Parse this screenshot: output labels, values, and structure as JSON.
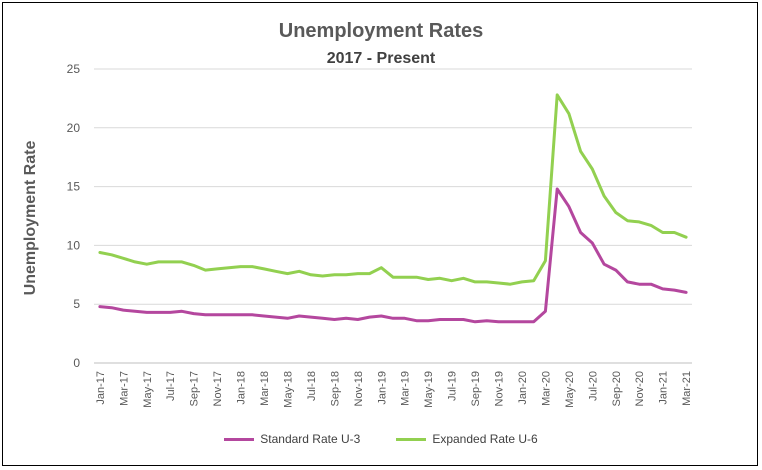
{
  "chart_data": {
    "type": "line",
    "title": "Unemployment Rates",
    "subtitle": "2017 - Present",
    "ylabel": "Unemployment Rate",
    "ylim": [
      0,
      25
    ],
    "yticks": [
      0,
      5,
      10,
      15,
      20,
      25
    ],
    "grid": true,
    "legend_position": "bottom",
    "x": [
      "Jan-17",
      "Feb-17",
      "Mar-17",
      "Apr-17",
      "May-17",
      "Jun-17",
      "Jul-17",
      "Aug-17",
      "Sep-17",
      "Oct-17",
      "Nov-17",
      "Dec-17",
      "Jan-18",
      "Feb-18",
      "Mar-18",
      "Apr-18",
      "May-18",
      "Jun-18",
      "Jul-18",
      "Aug-18",
      "Sep-18",
      "Oct-18",
      "Nov-18",
      "Dec-18",
      "Jan-19",
      "Feb-19",
      "Mar-19",
      "Apr-19",
      "May-19",
      "Jun-19",
      "Jul-19",
      "Aug-19",
      "Sep-19",
      "Oct-19",
      "Nov-19",
      "Dec-19",
      "Jan-20",
      "Feb-20",
      "Mar-20",
      "Apr-20",
      "May-20",
      "Jun-20",
      "Jul-20",
      "Aug-20",
      "Sep-20",
      "Oct-20",
      "Nov-20",
      "Dec-20",
      "Jan-21",
      "Feb-21",
      "Mar-21"
    ],
    "x_tick_labels": [
      "Jan-17",
      "Mar-17",
      "May-17",
      "Jul-17",
      "Sep-17",
      "Nov-17",
      "Jan-18",
      "Mar-18",
      "May-18",
      "Jul-18",
      "Sep-18",
      "Nov-18",
      "Jan-19",
      "Mar-19",
      "May-19",
      "Jul-19",
      "Sep-19",
      "Nov-19",
      "Jan-20",
      "Mar-20",
      "May-20",
      "Jul-20",
      "Sep-20",
      "Nov-20",
      "Jan-21",
      "Mar-21"
    ],
    "series": [
      {
        "name": "Standard Rate U-3",
        "color": "#B4479E",
        "values": [
          4.8,
          4.7,
          4.5,
          4.4,
          4.3,
          4.3,
          4.3,
          4.4,
          4.2,
          4.1,
          4.1,
          4.1,
          4.1,
          4.1,
          4.0,
          3.9,
          3.8,
          4.0,
          3.9,
          3.8,
          3.7,
          3.8,
          3.7,
          3.9,
          4.0,
          3.8,
          3.8,
          3.6,
          3.6,
          3.7,
          3.7,
          3.7,
          3.5,
          3.6,
          3.5,
          3.5,
          3.5,
          3.5,
          4.4,
          14.8,
          13.3,
          11.1,
          10.2,
          8.4,
          7.9,
          6.9,
          6.7,
          6.7,
          6.3,
          6.2,
          6.0
        ]
      },
      {
        "name": "Expanded Rate U-6",
        "color": "#92D050",
        "values": [
          9.4,
          9.2,
          8.9,
          8.6,
          8.4,
          8.6,
          8.6,
          8.6,
          8.3,
          7.9,
          8.0,
          8.1,
          8.2,
          8.2,
          8.0,
          7.8,
          7.6,
          7.8,
          7.5,
          7.4,
          7.5,
          7.5,
          7.6,
          7.6,
          8.1,
          7.3,
          7.3,
          7.3,
          7.1,
          7.2,
          7.0,
          7.2,
          6.9,
          6.9,
          6.8,
          6.7,
          6.9,
          7.0,
          8.7,
          22.8,
          21.2,
          18.0,
          16.5,
          14.2,
          12.8,
          12.1,
          12.0,
          11.7,
          11.1,
          11.1,
          10.7
        ]
      }
    ]
  }
}
